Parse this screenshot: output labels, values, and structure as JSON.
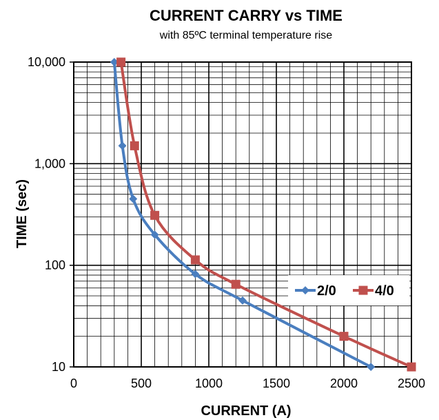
{
  "chart_data": {
    "type": "line",
    "title": "CURRENT CARRY vs TIME",
    "subtitle": "with 85ºC terminal temperature rise",
    "xlabel": "CURRENT (A)",
    "ylabel": "TIME (sec)",
    "xlim": [
      0,
      2500
    ],
    "ylim": [
      10,
      10000
    ],
    "yscale": "log",
    "x_ticks": [
      0,
      500,
      1000,
      1500,
      2000,
      2500
    ],
    "x_tick_labels": [
      "0",
      "500",
      "1000",
      "1500",
      "2000",
      "2500"
    ],
    "y_ticks": [
      10,
      100,
      1000,
      10000
    ],
    "y_tick_labels": [
      "10",
      "100",
      "1,000",
      "10,000"
    ],
    "grid": true,
    "legend_position": "right",
    "series": [
      {
        "name": "2/0",
        "color": "#4a7ebf",
        "marker": "diamond",
        "points": [
          {
            "x": 300,
            "y": 10000
          },
          {
            "x": 360,
            "y": 1500
          },
          {
            "x": 440,
            "y": 450
          },
          {
            "x": 600,
            "y": 200
          },
          {
            "x": 900,
            "y": 82
          },
          {
            "x": 1250,
            "y": 45
          },
          {
            "x": 2200,
            "y": 10
          }
        ]
      },
      {
        "name": "4/0",
        "color": "#c0504d",
        "marker": "square",
        "points": [
          {
            "x": 350,
            "y": 10000
          },
          {
            "x": 450,
            "y": 1500
          },
          {
            "x": 600,
            "y": 310
          },
          {
            "x": 900,
            "y": 113
          },
          {
            "x": 1200,
            "y": 65
          },
          {
            "x": 2000,
            "y": 20
          },
          {
            "x": 2500,
            "y": 10
          }
        ]
      }
    ]
  }
}
